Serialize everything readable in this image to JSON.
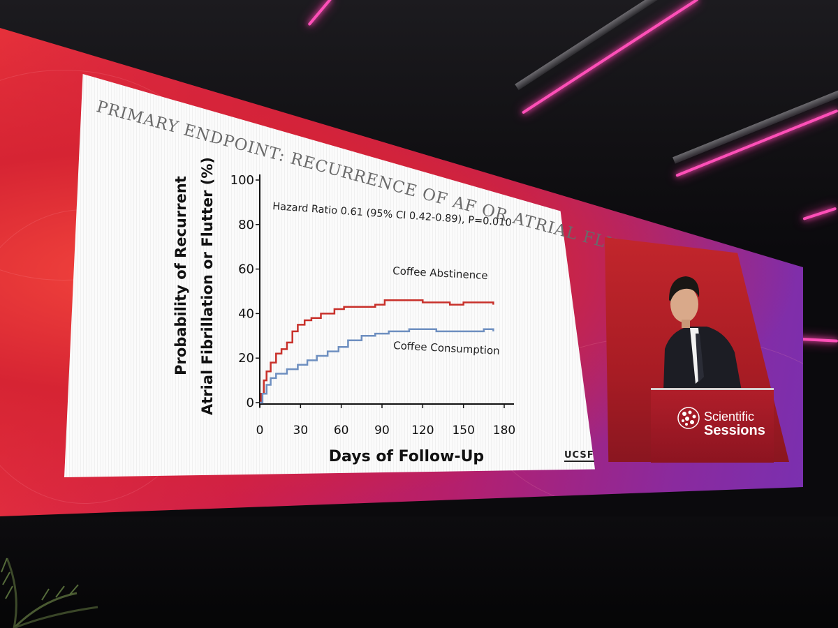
{
  "slide": {
    "title": "PRIMARY ENDPOINT: RECURRENCE OF AF OR ATRIAL FLUTTER",
    "institution": "UCSF"
  },
  "branding": {
    "line1": "Scientific",
    "line2": "Sessions"
  },
  "colors": {
    "abstinence": "#c8302a",
    "consumption": "#6e8fc0",
    "axis": "#111111"
  },
  "chart_data": {
    "type": "line",
    "title": "PRIMARY ENDPOINT: RECURRENCE OF AF OR ATRIAL FLUTTER",
    "xlabel": "Days of Follow-Up",
    "ylabel_line1": "Probability of Recurrent",
    "ylabel_line2": "Atrial Fibrillation or Flutter (%)",
    "annotation": "Hazard Ratio 0.61 (95% CI 0.42-0.89), P=0.010",
    "x_ticks": [
      "0",
      "30",
      "60",
      "90",
      "120",
      "150",
      "180"
    ],
    "y_ticks": [
      "0",
      "20",
      "40",
      "60",
      "80",
      "100"
    ],
    "xlim": [
      0,
      180
    ],
    "ylim": [
      0,
      100
    ],
    "series": [
      {
        "name": "Coffee Abstinence",
        "step": true,
        "points": [
          [
            0,
            0
          ],
          [
            1,
            4
          ],
          [
            3,
            10
          ],
          [
            5,
            14
          ],
          [
            8,
            18
          ],
          [
            12,
            22
          ],
          [
            16,
            24
          ],
          [
            20,
            27
          ],
          [
            24,
            32
          ],
          [
            28,
            35
          ],
          [
            33,
            37
          ],
          [
            38,
            38
          ],
          [
            45,
            40
          ],
          [
            55,
            42
          ],
          [
            62,
            43
          ],
          [
            75,
            43
          ],
          [
            85,
            44
          ],
          [
            92,
            46
          ],
          [
            100,
            46
          ],
          [
            120,
            45
          ],
          [
            140,
            44
          ],
          [
            150,
            45
          ],
          [
            165,
            45
          ],
          [
            172,
            44
          ]
        ]
      },
      {
        "name": "Coffee Consumption",
        "step": true,
        "points": [
          [
            0,
            0
          ],
          [
            2,
            4
          ],
          [
            5,
            8
          ],
          [
            8,
            11
          ],
          [
            12,
            13
          ],
          [
            20,
            15
          ],
          [
            28,
            17
          ],
          [
            35,
            19
          ],
          [
            42,
            21
          ],
          [
            50,
            23
          ],
          [
            58,
            25
          ],
          [
            65,
            28
          ],
          [
            75,
            30
          ],
          [
            85,
            31
          ],
          [
            95,
            32
          ],
          [
            110,
            33
          ],
          [
            130,
            32
          ],
          [
            150,
            32
          ],
          [
            165,
            33
          ],
          [
            172,
            32
          ]
        ]
      }
    ]
  }
}
